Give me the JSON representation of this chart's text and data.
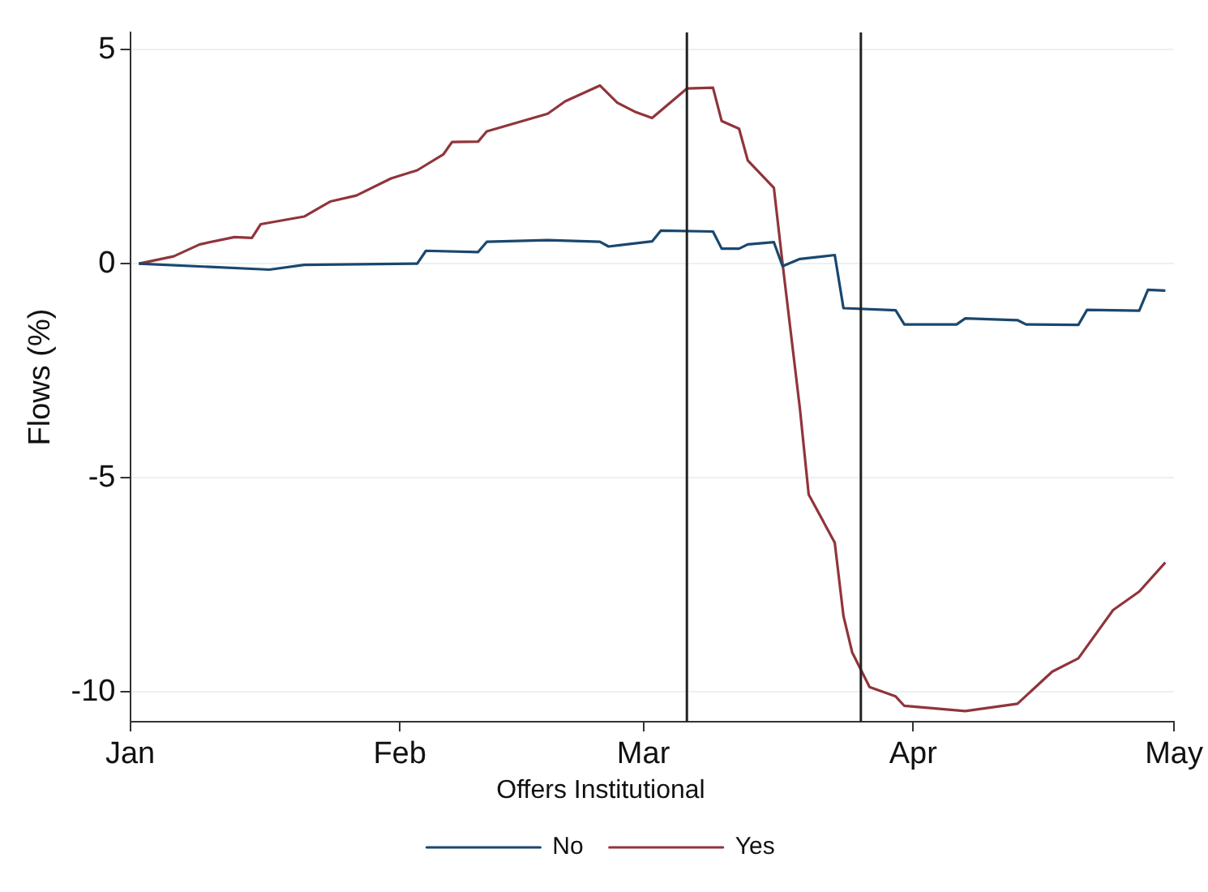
{
  "chart_data": {
    "type": "line",
    "ylabel": "Flows (%)",
    "legend_title": "Offers Institutional",
    "legend": "bottom",
    "grid": "y",
    "line_style": "solid",
    "marker": "none",
    "xlim": [
      "--01-01",
      "--05-01"
    ],
    "xticks": [
      {
        "value": "--01-01",
        "label": "Jan"
      },
      {
        "value": "--02-01",
        "label": "Feb"
      },
      {
        "value": "--03-01",
        "label": "Mar"
      },
      {
        "value": "--04-01",
        "label": "Apr"
      },
      {
        "value": "--05-01",
        "label": "May"
      }
    ],
    "ylim": [
      -10.7,
      5.4
    ],
    "yticks": [
      -10,
      -5,
      0,
      5
    ],
    "ref_lines": [
      {
        "axis": "x",
        "value": "--03-06",
        "color": "#222222"
      },
      {
        "axis": "x",
        "value": "--03-26",
        "color": "#222222"
      }
    ],
    "series": [
      {
        "name": "No",
        "color": "#1a476f",
        "x": [
          "--01-02",
          "--01-17",
          "--01-21",
          "--02-03",
          "--02-04",
          "--02-10",
          "--02-11",
          "--02-18",
          "--02-24",
          "--02-25",
          "--03-02",
          "--03-03",
          "--03-09",
          "--03-10",
          "--03-12",
          "--03-13",
          "--03-16",
          "--03-17",
          "--03-19",
          "--03-23",
          "--03-24",
          "--03-30",
          "--03-31",
          "--04-06",
          "--04-07",
          "--04-13",
          "--04-14",
          "--04-20",
          "--04-21",
          "--04-27",
          "--04-28",
          "--04-30"
        ],
        "values": [
          0,
          -0.14,
          -0.03,
          0,
          0.3,
          0.27,
          0.51,
          0.55,
          0.51,
          0.4,
          0.52,
          0.77,
          0.75,
          0.35,
          0.35,
          0.45,
          0.5,
          -0.06,
          0.11,
          0.2,
          -1.04,
          -1.09,
          -1.42,
          -1.42,
          -1.28,
          -1.32,
          -1.42,
          -1.43,
          -1.08,
          -1.1,
          -0.61,
          -0.63
        ]
      },
      {
        "name": "Yes",
        "color": "#90353b",
        "x": [
          "--01-02",
          "--01-06",
          "--01-09",
          "--01-13",
          "--01-15",
          "--01-16",
          "--01-21",
          "--01-24",
          "--01-27",
          "--01-31",
          "--02-03",
          "--02-06",
          "--02-07",
          "--02-10",
          "--02-11",
          "--02-18",
          "--02-20",
          "--02-24",
          "--02-26",
          "--02-28",
          "--03-02",
          "--03-06",
          "--03-09",
          "--03-10",
          "--03-12",
          "--03-13",
          "--03-16",
          "--03-17",
          "--03-19",
          "--03-20",
          "--03-23",
          "--03-24",
          "--03-25",
          "--03-27",
          "--03-30",
          "--03-31",
          "--04-07",
          "--04-13",
          "--04-17",
          "--04-20",
          "--04-24",
          "--04-27",
          "--04-30"
        ],
        "values": [
          0,
          0.17,
          0.45,
          0.62,
          0.6,
          0.92,
          1.1,
          1.45,
          1.59,
          1.99,
          2.18,
          2.55,
          2.84,
          2.85,
          3.09,
          3.5,
          3.79,
          4.16,
          3.76,
          3.55,
          3.4,
          4.09,
          4.11,
          3.33,
          3.15,
          2.41,
          1.77,
          0,
          -3.4,
          -5.39,
          -6.52,
          -8.23,
          -9.08,
          -9.89,
          -10.11,
          -10.33,
          -10.45,
          -10.28,
          -9.53,
          -9.22,
          -8.09,
          -7.66,
          -6.98
        ]
      }
    ]
  }
}
